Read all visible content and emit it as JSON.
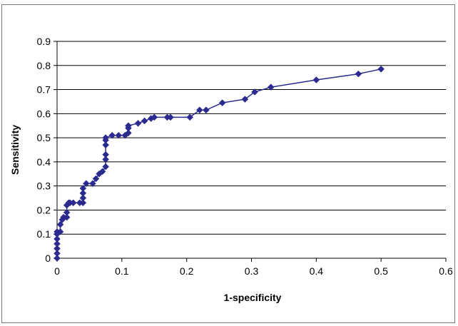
{
  "chart_data": {
    "type": "line",
    "title": "",
    "xlabel": "1-specificity",
    "ylabel": "Sensitivity",
    "xlim": [
      0,
      0.6
    ],
    "ylim": [
      0,
      0.9
    ],
    "xticks": [
      0,
      0.1,
      0.2,
      0.3,
      0.4,
      0.5,
      0.6
    ],
    "xtick_labels": [
      "0",
      "0.1",
      "0.2",
      "0.3",
      "0.4",
      "0.5",
      "0.6"
    ],
    "yticks": [
      0,
      0.1,
      0.2,
      0.3,
      0.4,
      0.5,
      0.6,
      0.7,
      0.8,
      0.9
    ],
    "ytick_labels": [
      "0",
      "0.1",
      "0.2",
      "0.3",
      "0.4",
      "0.5",
      "0.6",
      "0.7",
      "0.8",
      "0.9"
    ],
    "grid": "horizontal",
    "legend": "none",
    "marker": "diamond",
    "series_color": "#2b2b8f",
    "series": [
      {
        "x": [
          0,
          0,
          0,
          0,
          0,
          0,
          0,
          0.005,
          0.005,
          0.008,
          0.01,
          0.015,
          0.015,
          0.015,
          0.018,
          0.02,
          0.025,
          0.035,
          0.04,
          0.04,
          0.04,
          0.04,
          0.045,
          0.055,
          0.06,
          0.065,
          0.07,
          0.075,
          0.075,
          0.075,
          0.075,
          0.075,
          0.075,
          0.085,
          0.095,
          0.105,
          0.11,
          0.11,
          0.11,
          0.125,
          0.135,
          0.145,
          0.15,
          0.17,
          0.175,
          0.205,
          0.22,
          0.23,
          0.255,
          0.29,
          0.305,
          0.33,
          0.4,
          0.465,
          0.5
        ],
        "y": [
          0,
          0.02,
          0.04,
          0.06,
          0.08,
          0.1,
          0.11,
          0.11,
          0.14,
          0.16,
          0.17,
          0.17,
          0.19,
          0.22,
          0.23,
          0.23,
          0.23,
          0.23,
          0.23,
          0.25,
          0.27,
          0.29,
          0.31,
          0.31,
          0.33,
          0.35,
          0.36,
          0.38,
          0.41,
          0.43,
          0.47,
          0.49,
          0.5,
          0.51,
          0.51,
          0.51,
          0.52,
          0.54,
          0.55,
          0.56,
          0.57,
          0.58,
          0.585,
          0.585,
          0.585,
          0.585,
          0.615,
          0.615,
          0.645,
          0.66,
          0.69,
          0.71,
          0.74,
          0.765,
          0.785
        ]
      }
    ]
  }
}
